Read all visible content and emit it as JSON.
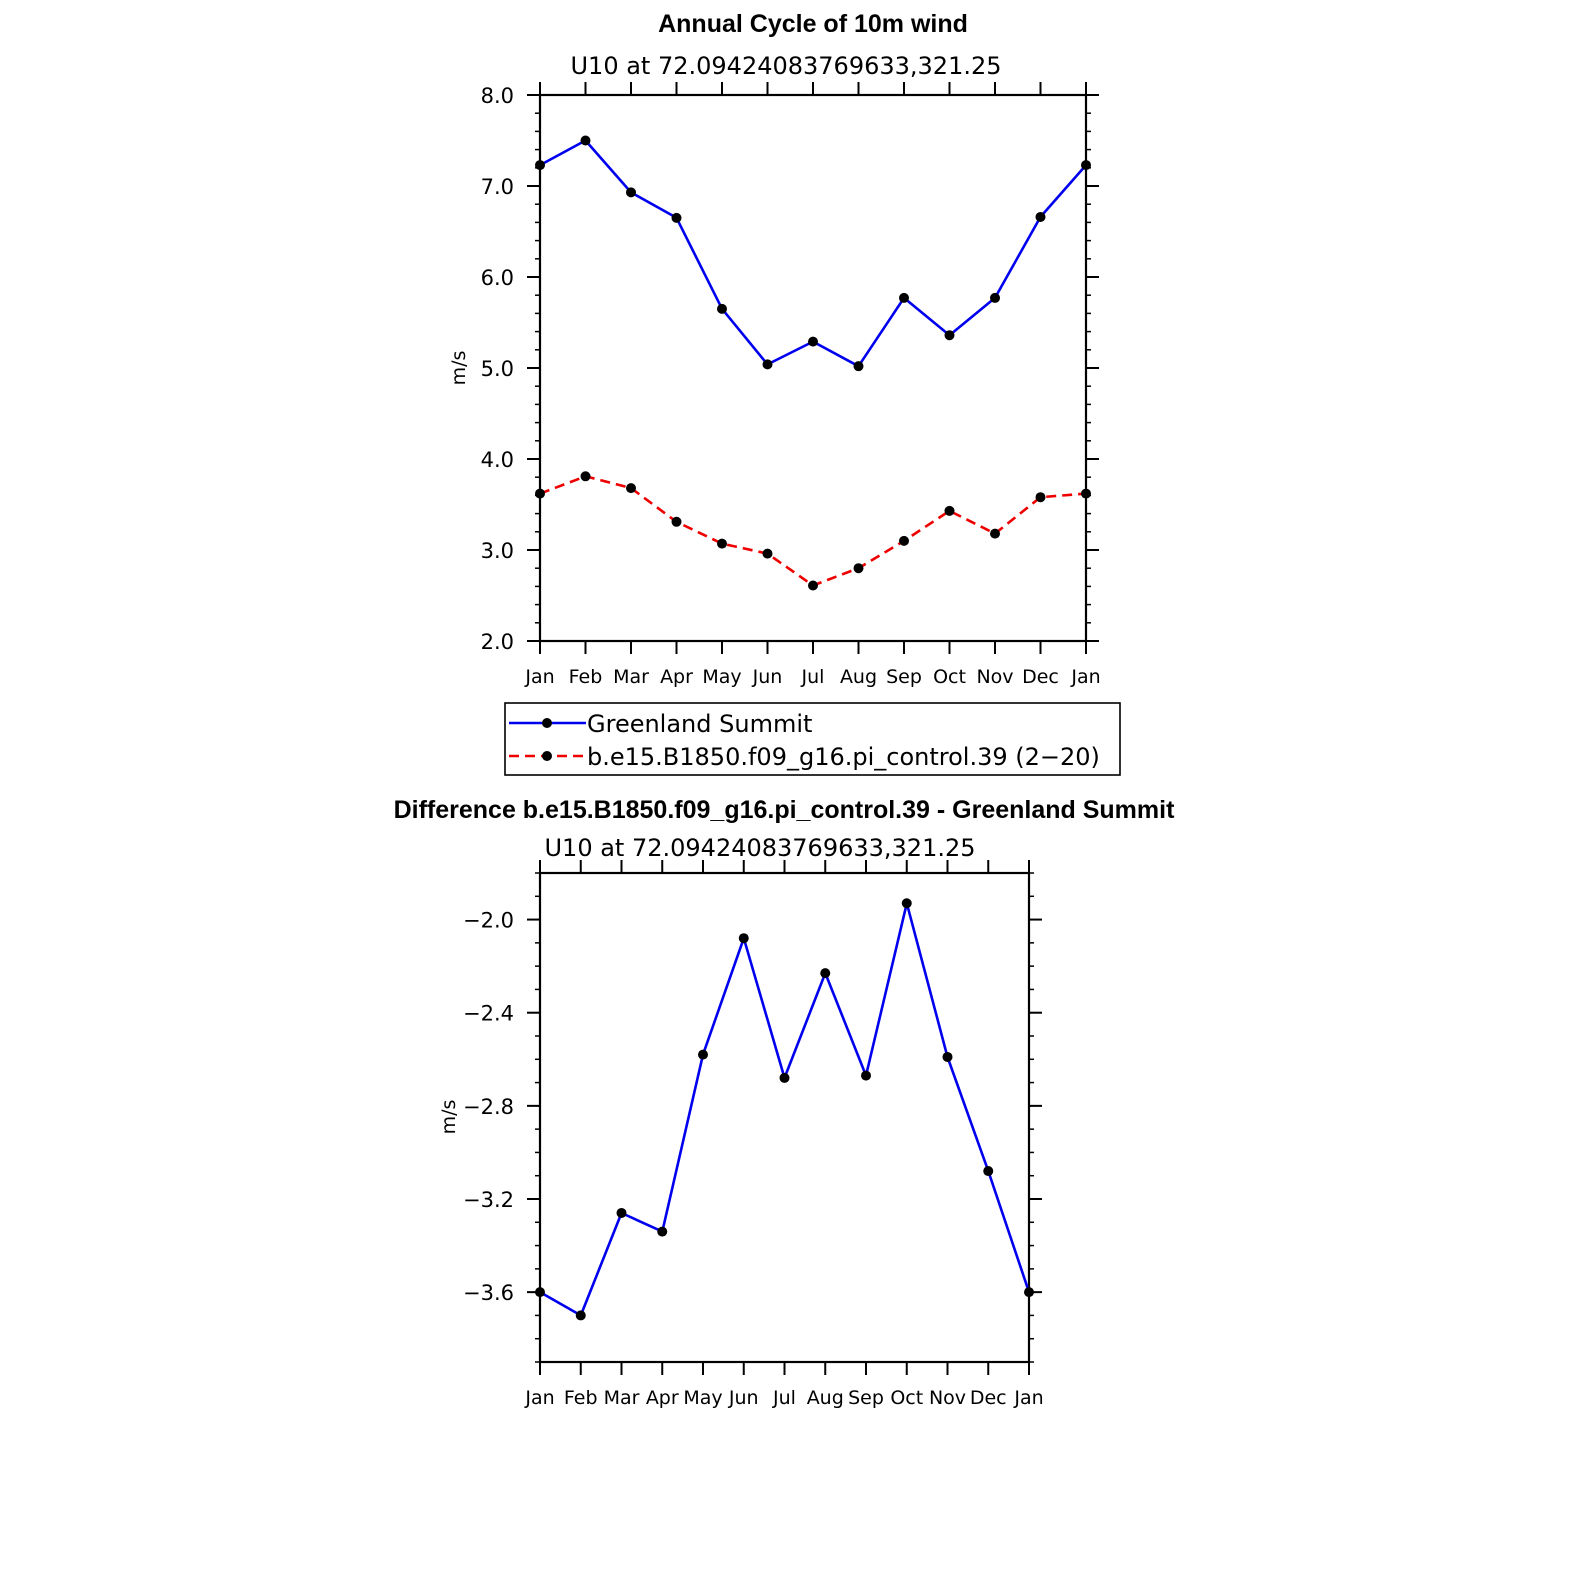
{
  "chart_data": [
    {
      "type": "line",
      "title": "Annual Cycle of 10m wind",
      "subtitle": "U10  at  72.09424083769633,321.25",
      "ylabel": "m/s",
      "xlabel": "",
      "ylim": [
        2.0,
        8.0
      ],
      "yticks": [
        2.0,
        3.0,
        4.0,
        5.0,
        6.0,
        7.0,
        8.0
      ],
      "ytick_labels": [
        "2.0",
        "3.0",
        "4.0",
        "5.0",
        "6.0",
        "7.0",
        "8.0"
      ],
      "categories": [
        "Jan",
        "Feb",
        "Mar",
        "Apr",
        "May",
        "Jun",
        "Jul",
        "Aug",
        "Sep",
        "Oct",
        "Nov",
        "Dec",
        "Jan"
      ],
      "series": [
        {
          "name": "Greenland Summit",
          "color": "#0000ee",
          "dash": "solid",
          "values": [
            7.23,
            7.5,
            6.93,
            6.65,
            5.65,
            5.04,
            5.29,
            5.02,
            5.77,
            5.36,
            5.77,
            6.66,
            7.23
          ]
        },
        {
          "name": "b.e15.B1850.f09_g16.pi_control.39 (2−20)",
          "color": "#ee0000",
          "dash": "dashed",
          "values": [
            3.62,
            3.81,
            3.68,
            3.31,
            3.07,
            2.96,
            2.61,
            2.8,
            3.1,
            3.43,
            3.18,
            3.58,
            3.62
          ]
        }
      ],
      "legend": "below"
    },
    {
      "type": "line",
      "title": "Difference b.e15.B1850.f09_g16.pi_control.39 - Greenland Summit",
      "subtitle": "U10  at  72.09424083769633,321.25",
      "ylabel": "m/s",
      "xlabel": "",
      "ylim": [
        -3.9,
        -1.8
      ],
      "yticks": [
        -2.0,
        -2.4,
        -2.8,
        -3.2,
        -3.6
      ],
      "ytick_labels": [
        "−2.0",
        "−2.4",
        "−2.8",
        "−3.2",
        "−3.6"
      ],
      "categories": [
        "Jan",
        "Feb",
        "Mar",
        "Apr",
        "May",
        "Jun",
        "Jul",
        "Aug",
        "Sep",
        "Oct",
        "Nov",
        "Dec",
        "Jan"
      ],
      "series": [
        {
          "name": "Difference",
          "color": "#0000ee",
          "dash": "solid",
          "values": [
            -3.6,
            -3.7,
            -3.26,
            -3.34,
            -2.58,
            -2.08,
            -2.68,
            -2.23,
            -2.67,
            -1.93,
            -2.59,
            -3.08,
            -3.6
          ]
        }
      ]
    }
  ]
}
